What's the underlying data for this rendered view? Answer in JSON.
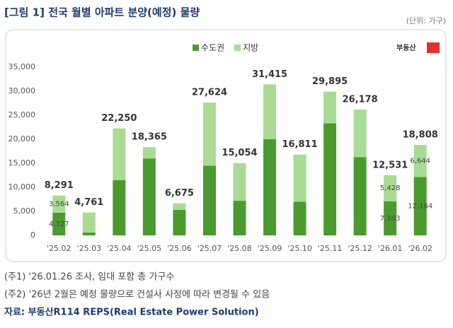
{
  "title": "[그림 1] 전국 월별 아파트 분양(예정) 물량",
  "unit": "(단위: 가구)",
  "chart_data": {
    "type": "bar",
    "stacked": true,
    "categories": [
      "'25.02",
      "'25.03",
      "'25.04",
      "'25.05",
      "'25.06",
      "'25.07",
      "'25.08",
      "'25.09",
      "'25.10",
      "'25.11",
      "'25.12",
      "'26.01",
      "'26.02"
    ],
    "series": [
      {
        "name": "수도권",
        "color": "#4b9a2f",
        "values": [
          4727,
          600,
          11500,
          16000,
          5300,
          14500,
          7200,
          20000,
          7000,
          23300,
          16300,
          7103,
          12164
        ],
        "value_labels": [
          "4,727",
          null,
          null,
          null,
          null,
          null,
          null,
          null,
          null,
          null,
          null,
          "7,103",
          "12,164"
        ]
      },
      {
        "name": "지방",
        "color": "#a9db94",
        "values": [
          3564,
          4161,
          10750,
          2365,
          1375,
          13124,
          7854,
          11415,
          9811,
          6595,
          9878,
          5428,
          6644
        ],
        "value_labels": [
          "3,564",
          null,
          null,
          null,
          null,
          null,
          null,
          null,
          null,
          null,
          null,
          "5,428",
          "6,644"
        ]
      }
    ],
    "totals": {
      "values": [
        8291,
        4761,
        22250,
        18365,
        6675,
        27624,
        15054,
        31415,
        16811,
        29895,
        26178,
        12531,
        18808
      ],
      "value_labels": [
        "8,291",
        "4,761",
        "22,250",
        "18,365",
        "6,675",
        "27,624",
        "15,054",
        "31,415",
        "16,811",
        "29,895",
        "26,178",
        "12,531",
        "18,808"
      ]
    },
    "ylim": [
      0,
      35000
    ],
    "yticks": [
      0,
      {
        "value": 5000,
        "label": "5,000"
      },
      {
        "value": 10000,
        "label": "10,000"
      },
      {
        "value": 15000,
        "label": "15,000"
      },
      {
        "value": 20000,
        "label": "20,000"
      },
      {
        "value": 25000,
        "label": "25,000"
      },
      {
        "value": 30000,
        "label": "30,000"
      },
      {
        "value": 35000,
        "label": "35,000"
      }
    ],
    "legend": "top"
  },
  "logo": "부동산",
  "notes": [
    "(주1) '26.01.26 조사, 임대 포함 총 가구수",
    "(주2) '26년 2월은 예정 물량으로 건설사 사정에 따라 변경될 수 있음"
  ],
  "source": "자료: 부동산R114 REPS(Real Estate Power Solution)"
}
